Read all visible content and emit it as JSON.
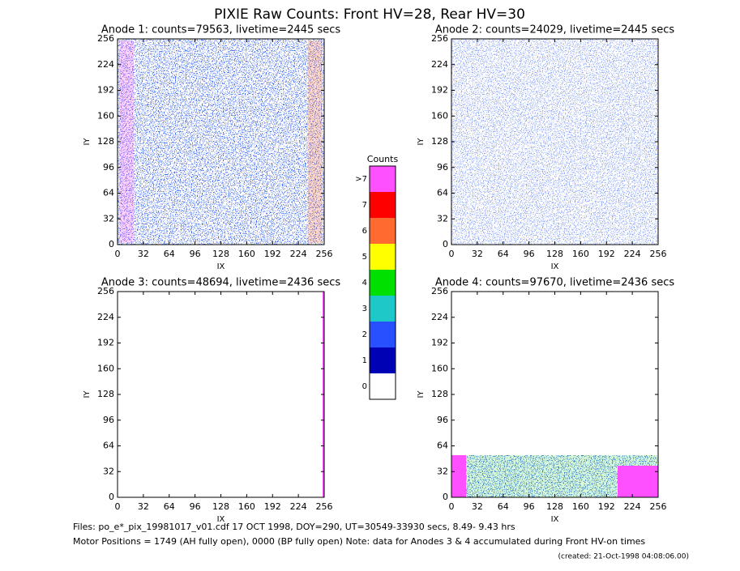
{
  "header": {
    "title": "PIXIE Raw Counts:  Front HV=28, Rear HV=30"
  },
  "chart_data": [
    {
      "type": "heatmap",
      "title": "Anode 1: counts=79563, livetime=2445 secs",
      "xlabel": "IX",
      "ylabel": "IY",
      "xlim": [
        0,
        256
      ],
      "ylim": [
        0,
        256
      ],
      "xticks": [
        0,
        32,
        64,
        96,
        128,
        160,
        192,
        224,
        256
      ],
      "yticks": [
        0,
        32,
        64,
        96,
        128,
        160,
        192,
        224,
        256
      ]
    },
    {
      "type": "heatmap",
      "title": "Anode 2: counts=24029, livetime=2445 secs",
      "xlabel": "IX",
      "ylabel": "IY",
      "xlim": [
        0,
        256
      ],
      "ylim": [
        0,
        256
      ],
      "xticks": [
        0,
        32,
        64,
        96,
        128,
        160,
        192,
        224,
        256
      ],
      "yticks": [
        0,
        32,
        64,
        96,
        128,
        160,
        192,
        224,
        256
      ]
    },
    {
      "type": "heatmap",
      "title": "Anode 3: counts=48694, livetime=2436 secs",
      "xlabel": "IX",
      "ylabel": "IY",
      "xlim": [
        0,
        256
      ],
      "ylim": [
        0,
        256
      ],
      "xticks": [
        0,
        32,
        64,
        96,
        128,
        160,
        192,
        224,
        256
      ],
      "yticks": [
        0,
        32,
        64,
        96,
        128,
        160,
        192,
        224,
        256
      ]
    },
    {
      "type": "heatmap",
      "title": "Anode 4: counts=97670, livetime=2436 secs",
      "xlabel": "IX",
      "ylabel": "IY",
      "xlim": [
        0,
        256
      ],
      "ylim": [
        0,
        256
      ],
      "xticks": [
        0,
        32,
        64,
        96,
        128,
        160,
        192,
        224,
        256
      ],
      "yticks": [
        0,
        32,
        64,
        96,
        128,
        160,
        192,
        224,
        256
      ]
    }
  ],
  "colorbar": {
    "title": "Counts",
    "levels": [
      0,
      1,
      2,
      3,
      4,
      5,
      6,
      7,
      ">7"
    ],
    "colors": [
      "#ffffff",
      "#0000b4",
      "#2850ff",
      "#1ec8c8",
      "#00e000",
      "#ffff00",
      "#ff6a30",
      "#ff0000",
      "#ff50ff"
    ]
  },
  "footer": {
    "files": "Files: po_e*_pix_19981017_v01.cdf    17 OCT 1998, DOY=290, UT=30549-33930 secs,  8.49- 9.43 hrs",
    "motor": "Motor Positions = 1749 (AH fully open), 0000 (BP fully open)    Note: data for Anodes 3 & 4 accumulated during Front HV-on times",
    "created": "(created: 21-Oct-1998 04:08:06.00)"
  }
}
